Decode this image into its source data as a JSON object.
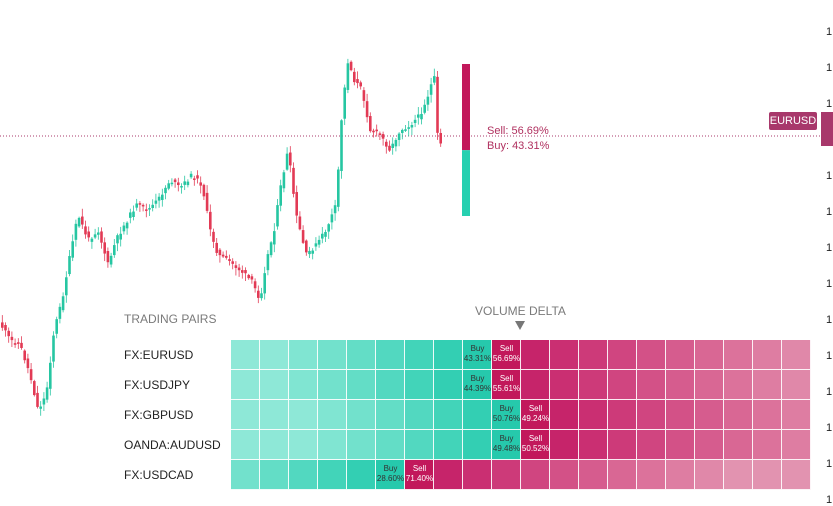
{
  "chart_data": [
    {
      "type": "line",
      "style": "candlestick",
      "symbol": "EURUSD",
      "colors": {
        "up": "#26c6a2",
        "down": "#e23a55",
        "price_line": "#a8386b"
      },
      "current_price_label": "EURUSD",
      "axis_ticks": [
        "1",
        "1",
        "1",
        "1",
        "1",
        "1",
        "1",
        "1",
        "1",
        "1",
        "1",
        "1",
        "1",
        "1"
      ],
      "sentiment_bar": {
        "sell_percent": 56.69,
        "buy_percent": 43.31,
        "sell_text": "Sell: 56.69%",
        "buy_text": "Buy: 43.31%",
        "sell_color": "#c2185b",
        "buy_color": "#26d0b0"
      }
    },
    {
      "type": "heatmap",
      "title_left": "TRADING PAIRS",
      "title_right": "VOLUME DELTA",
      "columns": 20,
      "buy_palette": [
        "#8ee8d7",
        "#80e5d2",
        "#72e1cc",
        "#63ddc6",
        "#52d8c0",
        "#42d4b9",
        "#33cfb3",
        "#26c9ac"
      ],
      "sell_palette": [
        "#c2185b",
        "#c6246a",
        "#ca2f72",
        "#cd3a79",
        "#d04580",
        "#d35187",
        "#d65c8e",
        "#d96794",
        "#dc729b",
        "#de7da2",
        "#e088a9",
        "#e293b0"
      ],
      "rows": [
        {
          "pair": "FX:EURUSD",
          "buy_label": "Buy",
          "buy_value": "43.31%",
          "sell_label": "Sell",
          "sell_value": "56.69%",
          "buy": 43.31,
          "sell": 56.69
        },
        {
          "pair": "FX:USDJPY",
          "buy_label": "Buy",
          "buy_value": "44.39%",
          "sell_label": "Sell",
          "sell_value": "55.61%",
          "buy": 44.39,
          "sell": 55.61
        },
        {
          "pair": "FX:GBPUSD",
          "buy_label": "Buy",
          "buy_value": "50.76%",
          "sell_label": "Sell",
          "sell_value": "49.24%",
          "buy": 50.76,
          "sell": 49.24
        },
        {
          "pair": "OANDA:AUDUSD",
          "buy_label": "Buy",
          "buy_value": "49.48%",
          "sell_label": "Sell",
          "sell_value": "50.52%",
          "buy": 49.48,
          "sell": 50.52
        },
        {
          "pair": "FX:USDCAD",
          "buy_label": "Buy",
          "buy_value": "28.60%",
          "sell_label": "Sell",
          "sell_value": "71.40%",
          "buy": 28.6,
          "sell": 71.4
        }
      ]
    }
  ]
}
